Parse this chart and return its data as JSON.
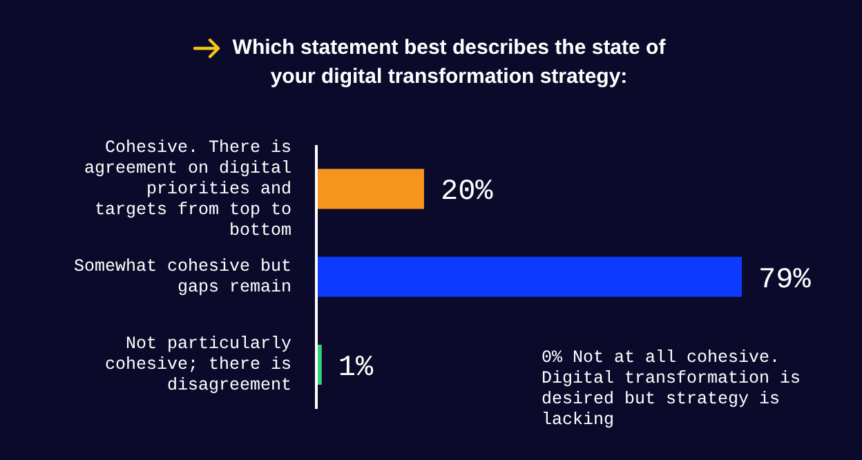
{
  "chart_data": {
    "type": "bar",
    "orientation": "horizontal",
    "title": "Which statement best describes the state of your digital transformation strategy:",
    "categories": [
      "Cohesive. There is agreement on digital priorities and targets from top to bottom",
      "Somewhat cohesive but gaps remain",
      "Not particularly cohesive; there is disagreement"
    ],
    "values": [
      20,
      79,
      1
    ],
    "colors": [
      "#f7941d",
      "#0b3bff",
      "#2ed47a"
    ],
    "data_labels": true,
    "value_labels": [
      "20%",
      "79%",
      "1%"
    ],
    "annotations": [
      "0% Not at all cohesive. Digital transformation is desired but strategy is lacking"
    ],
    "grid": false,
    "legend": false
  }
}
